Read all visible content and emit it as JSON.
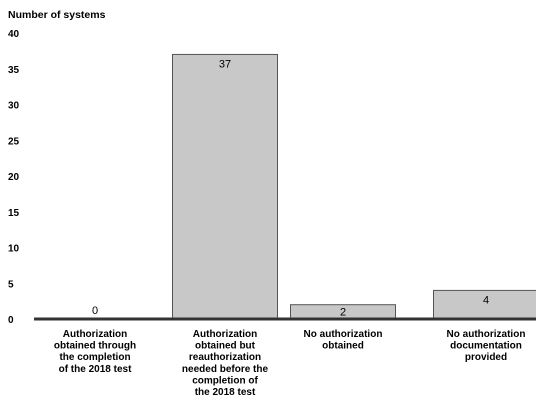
{
  "chart_data": {
    "type": "bar",
    "ylabel": "Number of systems",
    "xlabel": "",
    "title": "",
    "ylim": [
      0,
      40
    ],
    "yticks": [
      0,
      5,
      10,
      15,
      20,
      25,
      30,
      35,
      40
    ],
    "grid": false,
    "legend": "none",
    "categories": [
      [
        "Authorization",
        "obtained through",
        "the completion",
        "of the 2018 test"
      ],
      [
        "Authorization",
        "obtained but",
        "reauthorization",
        "needed before the",
        "completion of",
        "the 2018 test"
      ],
      [
        "No authorization",
        "obtained"
      ],
      [
        "No authorization",
        "documentation",
        "provided"
      ]
    ],
    "values": [
      0,
      37,
      2,
      4
    ],
    "bar_fill": "#c8c8c8",
    "bar_stroke": "#555555",
    "axis_color": "#333333"
  }
}
